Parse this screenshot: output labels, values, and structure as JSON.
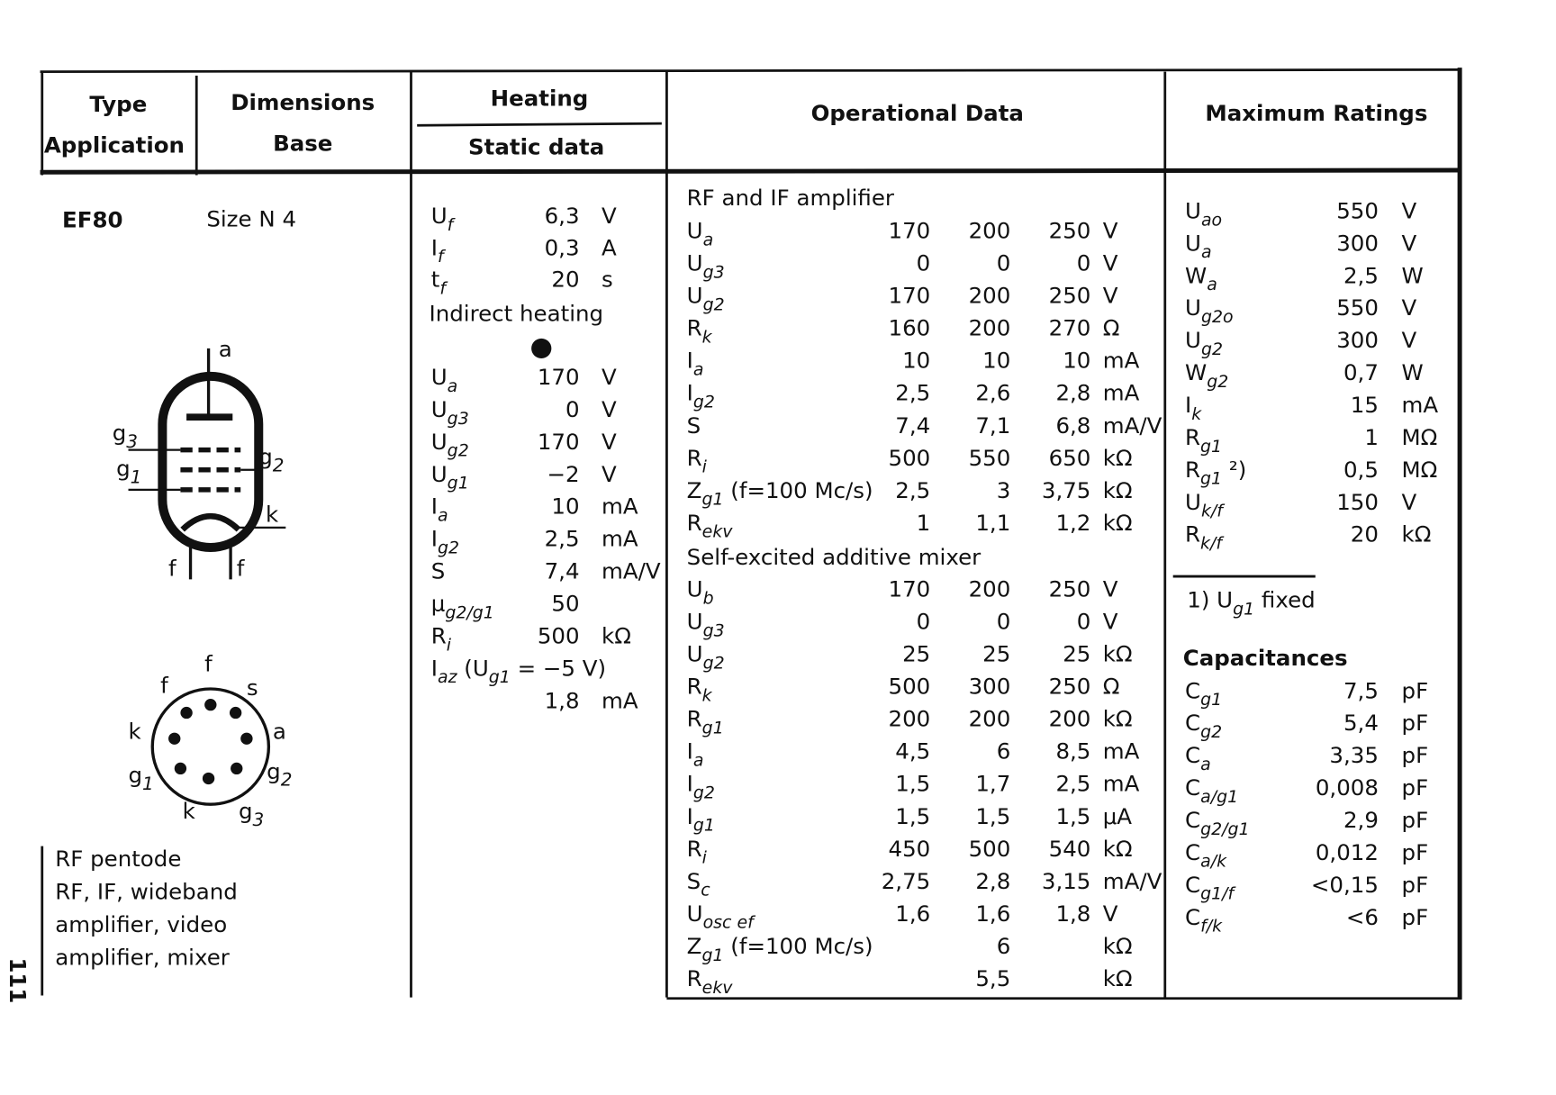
{
  "header": {
    "type": "Type",
    "application": "Application",
    "dimensions": "Dimensions",
    "base": "Base",
    "heating": "Heating",
    "static": "Static data",
    "operational": "Operational Data",
    "maximum": "Maximum Ratings"
  },
  "tube": {
    "name": "EF80",
    "size": "Size N 4",
    "tube_labels": [
      [
        "a"
      ],
      [
        "g",
        {
          "sub": "3"
        }
      ],
      [
        "g",
        {
          "sub": "2"
        }
      ],
      [
        "g",
        {
          "sub": "1"
        }
      ],
      [
        "k"
      ],
      [
        "f"
      ],
      [
        "f"
      ]
    ],
    "base_labels": [
      [
        "f"
      ],
      [
        "f"
      ],
      [
        "s"
      ],
      [
        "k"
      ],
      [
        "a"
      ],
      [
        "g",
        {
          "sub": "1"
        }
      ],
      [
        "g",
        {
          "sub": "2"
        }
      ],
      [
        "k"
      ],
      [
        "g",
        {
          "sub": "3"
        }
      ]
    ],
    "description": [
      "RF pentode",
      "RF, IF, wideband",
      "amplifier, video",
      "amplifier, mixer"
    ]
  },
  "page_number": "111",
  "heating": {
    "rows": [
      {
        "sym": [
          "U",
          {
            "sub": "f"
          }
        ],
        "v": [
          "6,3"
        ],
        "u": "V"
      },
      {
        "sym": [
          "I",
          {
            "sub": "f"
          }
        ],
        "v": [
          "0,3"
        ],
        "u": "A"
      },
      {
        "sym": [
          "t",
          {
            "sub": "f"
          }
        ],
        "v": [
          "20"
        ],
        "u": "s"
      }
    ],
    "note": "Indirect heating"
  },
  "static": {
    "rows": [
      {
        "sym": [
          "U",
          {
            "sub": "a"
          }
        ],
        "v": [
          "170"
        ],
        "u": "V"
      },
      {
        "sym": [
          "U",
          {
            "sub": "g3"
          }
        ],
        "v": [
          "0"
        ],
        "u": "V"
      },
      {
        "sym": [
          "U",
          {
            "sub": "g2"
          }
        ],
        "v": [
          "170"
        ],
        "u": "V"
      },
      {
        "sym": [
          "U",
          {
            "sub": "g1"
          }
        ],
        "v": [
          "−2"
        ],
        "u": "V"
      },
      {
        "sym": [
          "I",
          {
            "sub": "a"
          }
        ],
        "v": [
          "10"
        ],
        "u": "mA"
      },
      {
        "sym": [
          "I",
          {
            "sub": "g2"
          }
        ],
        "v": [
          "2,5"
        ],
        "u": "mA"
      },
      {
        "sym": [
          "S"
        ],
        "v": [
          "7,4"
        ],
        "u": "mA/V"
      },
      {
        "sym": [
          "μ",
          {
            "sub": "g2/g1"
          }
        ],
        "v": [
          "50"
        ]
      },
      {
        "sym": [
          "R",
          {
            "sub": "i"
          }
        ],
        "v": [
          "500"
        ],
        "u": "kΩ"
      },
      {
        "sym": [
          "I",
          {
            "sub": "az"
          },
          " (U",
          {
            "sub": "g1"
          },
          " = −5 V)"
        ]
      },
      {
        "v": [
          "1,8"
        ],
        "u": "mA"
      }
    ]
  },
  "operational": {
    "rf_title": "RF and IF amplifier",
    "rf_rows": [
      {
        "sym": [
          "U",
          {
            "sub": "a"
          }
        ],
        "v": [
          "170",
          "200",
          "250"
        ],
        "u": "V"
      },
      {
        "sym": [
          "U",
          {
            "sub": "g3"
          }
        ],
        "v": [
          "0",
          "0",
          "0"
        ],
        "u": "V"
      },
      {
        "sym": [
          "U",
          {
            "sub": "g2"
          }
        ],
        "v": [
          "170",
          "200",
          "250"
        ],
        "u": "V"
      },
      {
        "sym": [
          "R",
          {
            "sub": "k"
          }
        ],
        "v": [
          "160",
          "200",
          "270"
        ],
        "u": "Ω"
      },
      {
        "sym": [
          "I",
          {
            "sub": "a"
          }
        ],
        "v": [
          "10",
          "10",
          "10"
        ],
        "u": "mA"
      },
      {
        "sym": [
          "I",
          {
            "sub": "g2"
          }
        ],
        "v": [
          "2,5",
          "2,6",
          "2,8"
        ],
        "u": "mA"
      },
      {
        "sym": [
          "S"
        ],
        "v": [
          "7,4",
          "7,1",
          "6,8"
        ],
        "u": "mA/V"
      },
      {
        "sym": [
          "R",
          {
            "sub": "i"
          }
        ],
        "v": [
          "500",
          "550",
          "650"
        ],
        "u": "kΩ"
      },
      {
        "sym": [
          "Z",
          {
            "sub": "g1"
          },
          " (f=100 Mc/s)"
        ],
        "v": [
          "2,5",
          "3",
          "3,75"
        ],
        "u": "kΩ"
      },
      {
        "sym": [
          "R",
          {
            "sub": "ekv"
          }
        ],
        "v": [
          "1",
          "1,1",
          "1,2"
        ],
        "u": "kΩ"
      }
    ],
    "mix_title": "Self-excited additive mixer",
    "mix_rows": [
      {
        "sym": [
          "U",
          {
            "sub": "b"
          }
        ],
        "v": [
          "170",
          "200",
          "250"
        ],
        "u": "V"
      },
      {
        "sym": [
          "U",
          {
            "sub": "g3"
          }
        ],
        "v": [
          "0",
          "0",
          "0"
        ],
        "u": "V"
      },
      {
        "sym": [
          "U",
          {
            "sub": "g2"
          }
        ],
        "v": [
          "25",
          "25",
          "25"
        ],
        "u": "kΩ"
      },
      {
        "sym": [
          "R",
          {
            "sub": "k"
          }
        ],
        "v": [
          "500",
          "300",
          "250"
        ],
        "u": "Ω"
      },
      {
        "sym": [
          "R",
          {
            "sub": "g1"
          }
        ],
        "v": [
          "200",
          "200",
          "200"
        ],
        "u": "kΩ"
      },
      {
        "sym": [
          "I",
          {
            "sub": "a"
          }
        ],
        "v": [
          "4,5",
          "6",
          "8,5"
        ],
        "u": "mA"
      },
      {
        "sym": [
          "I",
          {
            "sub": "g2"
          }
        ],
        "v": [
          "1,5",
          "1,7",
          "2,5"
        ],
        "u": "mA"
      },
      {
        "sym": [
          "I",
          {
            "sub": "g1"
          }
        ],
        "v": [
          "1,5",
          "1,5",
          "1,5"
        ],
        "u": "μA"
      },
      {
        "sym": [
          "R",
          {
            "sub": "i"
          }
        ],
        "v": [
          "450",
          "500",
          "540"
        ],
        "u": "kΩ"
      },
      {
        "sym": [
          "S",
          {
            "sub": "c"
          }
        ],
        "v": [
          "2,75",
          "2,8",
          "3,15"
        ],
        "u": "mA/V"
      },
      {
        "sym": [
          "U",
          {
            "sub": "osc ef"
          }
        ],
        "v": [
          "1,6",
          "1,6",
          "1,8"
        ],
        "u": "V"
      },
      {
        "sym": [
          "Z",
          {
            "sub": "g1"
          },
          "  (f=100 Mc/s)"
        ],
        "v": [
          null,
          "6",
          null
        ],
        "u": "kΩ"
      },
      {
        "sym": [
          "R",
          {
            "sub": "ekv"
          }
        ],
        "v": [
          null,
          "5,5",
          null
        ],
        "u": "kΩ"
      }
    ]
  },
  "maximum": {
    "rows": [
      {
        "sym": [
          "U",
          {
            "sub": "ao"
          }
        ],
        "v": [
          "550"
        ],
        "u": "V"
      },
      {
        "sym": [
          "U",
          {
            "sub": "a"
          }
        ],
        "v": [
          "300"
        ],
        "u": "V"
      },
      {
        "sym": [
          "W",
          {
            "sub": "a"
          }
        ],
        "v": [
          "2,5"
        ],
        "u": "W"
      },
      {
        "sym": [
          "U",
          {
            "sub": "g2o"
          }
        ],
        "v": [
          "550"
        ],
        "u": "V"
      },
      {
        "sym": [
          "U",
          {
            "sub": "g2"
          }
        ],
        "v": [
          "300"
        ],
        "u": "V"
      },
      {
        "sym": [
          "W",
          {
            "sub": "g2"
          }
        ],
        "v": [
          "0,7"
        ],
        "u": "W"
      },
      {
        "sym": [
          "I",
          {
            "sub": "k"
          }
        ],
        "v": [
          "15"
        ],
        "u": "mA"
      },
      {
        "sym": [
          "R",
          {
            "sub": "g1"
          }
        ],
        "v": [
          "1"
        ],
        "u": "MΩ"
      },
      {
        "sym": [
          "R",
          {
            "sub": "g1"
          },
          " ²)"
        ],
        "v": [
          "0,5"
        ],
        "u": "MΩ"
      },
      {
        "sym": [
          "U",
          {
            "sub": "k/f"
          }
        ],
        "v": [
          "150"
        ],
        "u": "V"
      },
      {
        "sym": [
          "R",
          {
            "sub": "k/f"
          }
        ],
        "v": [
          "20"
        ],
        "u": "kΩ"
      }
    ],
    "footnote": [
      "1)  U",
      {
        "sub": "g1"
      },
      " fixed"
    ],
    "cap_title": "Capacitances",
    "cap_rows": [
      {
        "sym": [
          "C",
          {
            "sub": "g1"
          }
        ],
        "v": [
          "7,5"
        ],
        "u": "pF"
      },
      {
        "sym": [
          "C",
          {
            "sub": "g2"
          }
        ],
        "v": [
          "5,4"
        ],
        "u": "pF"
      },
      {
        "sym": [
          "C",
          {
            "sub": "a"
          }
        ],
        "v": [
          "3,35"
        ],
        "u": "pF"
      },
      {
        "sym": [
          "C",
          {
            "sub": "a/g1"
          }
        ],
        "v": [
          "0,008"
        ],
        "u": "pF"
      },
      {
        "sym": [
          "C",
          {
            "sub": "g2/g1"
          }
        ],
        "v": [
          "2,9"
        ],
        "u": "pF"
      },
      {
        "sym": [
          "C",
          {
            "sub": "a/k"
          }
        ],
        "v": [
          "0,012"
        ],
        "u": "pF"
      },
      {
        "sym": [
          "C",
          {
            "sub": "g1/f"
          }
        ],
        "v": [
          "<0,15"
        ],
        "u": "pF"
      },
      {
        "sym": [
          "C",
          {
            "sub": "f/k"
          }
        ],
        "v": [
          "<6"
        ],
        "u": "pF"
      }
    ]
  }
}
